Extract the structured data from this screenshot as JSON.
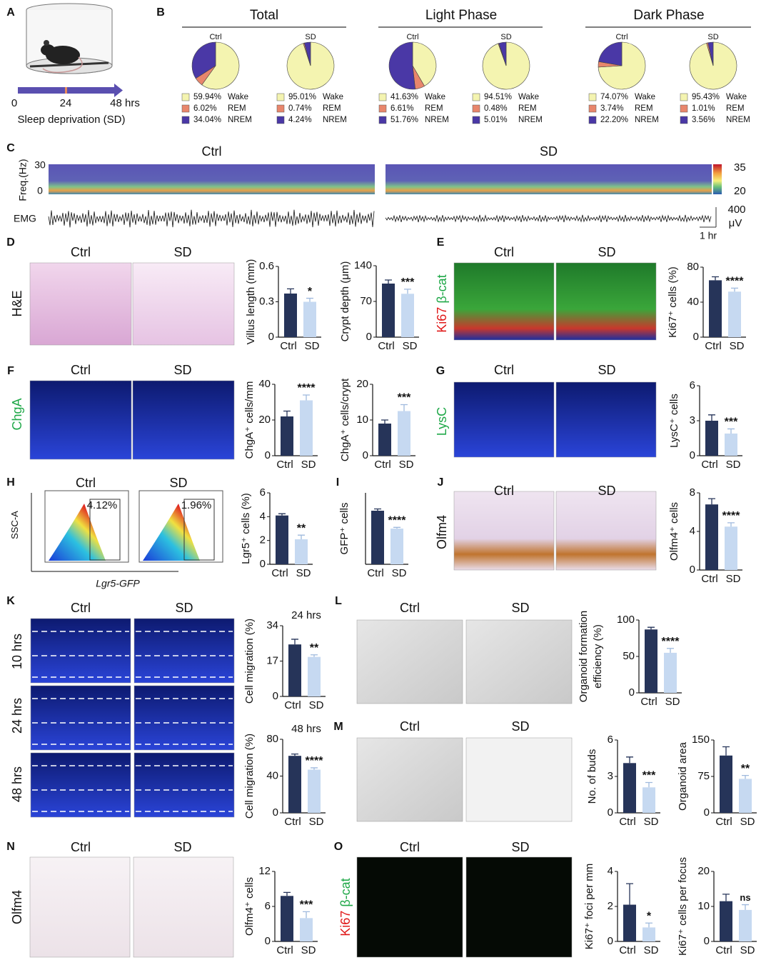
{
  "figure": {
    "panel_letters": [
      "A",
      "B",
      "C",
      "D",
      "E",
      "F",
      "G",
      "H",
      "I",
      "J",
      "K",
      "L",
      "M",
      "N",
      "O"
    ],
    "pie_groups": [
      "Total",
      "Light Phase",
      "Dark Phase"
    ],
    "timeline": {
      "ticks": [
        "0",
        "24",
        "48 hrs"
      ],
      "label": "Sleep deprivation (SD)"
    },
    "spectrogram": {
      "titles": [
        "Ctrl",
        "SD"
      ],
      "ylabel": "Freq.(Hz)",
      "yticks": [
        30,
        0
      ],
      "colorbar_ticks": [
        35,
        20
      ],
      "emg_label": "EMG",
      "emg_scale": [
        "400",
        "μV"
      ],
      "time_scale": "1 hr"
    },
    "image_titles": [
      "Ctrl",
      "SD",
      "Ctrl",
      "SD",
      "Ctrl",
      "SD",
      "Ctrl",
      "SD",
      "Ctrl",
      "SD",
      "Ctrl",
      "SD",
      "Ctrl",
      "SD",
      "Ctrl",
      "SD",
      "Ctrl",
      "SD",
      "Ctrl",
      "SD",
      "Ctrl",
      "SD"
    ],
    "side_labels": [
      [
        "H&E"
      ],
      [
        "Ki67",
        "β-cat"
      ],
      [
        "ChgA"
      ],
      [
        "LysC"
      ],
      [
        "SSC-A"
      ],
      [
        "Olfm4"
      ],
      [
        "10 hrs"
      ],
      [
        "24 hrs"
      ],
      [
        "48 hrs"
      ],
      [
        "Olfm4"
      ],
      [
        "Ki67",
        "β-cat"
      ]
    ],
    "flow": {
      "gates": [
        "4.12%",
        "1.96%"
      ],
      "xlabel": "Lgr5-GFP"
    }
  },
  "chart_data": [
    {
      "type": "pie",
      "title": "Ctrl",
      "categories": [
        "Wake",
        "REM",
        "NREM"
      ],
      "values": [
        59.94,
        6.02,
        34.04
      ],
      "value_labels": [
        "59.94%",
        "6.02%",
        "34.04%"
      ],
      "colors": [
        "#f4f4b0",
        "#e8866c",
        "#4a38a6"
      ]
    },
    {
      "type": "pie",
      "title": "SD",
      "categories": [
        "Wake",
        "REM",
        "NREM"
      ],
      "values": [
        95.01,
        0.74,
        4.24
      ],
      "value_labels": [
        "95.01%",
        "0.74%",
        "4.24%"
      ],
      "colors": [
        "#f4f4b0",
        "#e8866c",
        "#4a38a6"
      ]
    },
    {
      "type": "pie",
      "title": "Ctrl",
      "categories": [
        "Wake",
        "REM",
        "NREM"
      ],
      "values": [
        41.63,
        6.61,
        51.76
      ],
      "value_labels": [
        "41.63%",
        "6.61%",
        "51.76%"
      ],
      "colors": [
        "#f4f4b0",
        "#e8866c",
        "#4a38a6"
      ]
    },
    {
      "type": "pie",
      "title": "SD",
      "categories": [
        "Wake",
        "REM",
        "NREM"
      ],
      "values": [
        94.51,
        0.48,
        5.01
      ],
      "value_labels": [
        "94.51%",
        "0.48%",
        "5.01%"
      ],
      "colors": [
        "#f4f4b0",
        "#e8866c",
        "#4a38a6"
      ]
    },
    {
      "type": "pie",
      "title": "Ctrl",
      "categories": [
        "Wake",
        "REM",
        "NREM"
      ],
      "values": [
        74.07,
        3.74,
        22.2
      ],
      "value_labels": [
        "74.07%",
        "3.74%",
        "22.20%"
      ],
      "colors": [
        "#f4f4b0",
        "#e8866c",
        "#4a38a6"
      ]
    },
    {
      "type": "pie",
      "title": "SD",
      "categories": [
        "Wake",
        "REM",
        "NREM"
      ],
      "values": [
        95.43,
        1.01,
        3.56
      ],
      "value_labels": [
        "95.43%",
        "1.01%",
        "3.56%"
      ],
      "colors": [
        "#f4f4b0",
        "#e8866c",
        "#4a38a6"
      ]
    },
    {
      "type": "bar",
      "ylabel": "Villus length (mm)",
      "categories": [
        "Ctrl",
        "SD"
      ],
      "values": [
        0.37,
        0.3
      ],
      "errors": [
        0.04,
        0.03
      ],
      "colors": [
        "#263459",
        "#c6d9f1"
      ],
      "ylim": [
        0,
        0.6
      ],
      "yticks": [
        0,
        0.3,
        0.6
      ],
      "annotations": [
        "*"
      ]
    },
    {
      "type": "bar",
      "ylabel": "Crypt depth (μm)",
      "categories": [
        "Ctrl",
        "SD"
      ],
      "values": [
        105,
        85
      ],
      "errors": [
        7,
        9
      ],
      "colors": [
        "#263459",
        "#c6d9f1"
      ],
      "ylim": [
        0,
        140
      ],
      "yticks": [
        0,
        70,
        140
      ],
      "annotations": [
        "***"
      ]
    },
    {
      "type": "bar",
      "ylabel": "Ki67⁺ cells (%)",
      "categories": [
        "Ctrl",
        "SD"
      ],
      "values": [
        65,
        52
      ],
      "errors": [
        4,
        4
      ],
      "colors": [
        "#263459",
        "#c6d9f1"
      ],
      "ylim": [
        0,
        80
      ],
      "yticks": [
        0,
        40,
        80
      ],
      "annotations": [
        "****"
      ]
    },
    {
      "type": "bar",
      "ylabel": "ChgA⁺ cells/mm",
      "categories": [
        "Ctrl",
        "SD"
      ],
      "values": [
        22,
        31
      ],
      "errors": [
        3,
        3
      ],
      "colors": [
        "#263459",
        "#c6d9f1"
      ],
      "ylim": [
        0,
        40
      ],
      "yticks": [
        0,
        20,
        40
      ],
      "annotations": [
        "****"
      ]
    },
    {
      "type": "bar",
      "ylabel": "ChgA⁺ cells/crypt",
      "categories": [
        "Ctrl",
        "SD"
      ],
      "values": [
        9,
        12.5
      ],
      "errors": [
        1,
        1.8
      ],
      "colors": [
        "#263459",
        "#c6d9f1"
      ],
      "ylim": [
        0,
        20
      ],
      "yticks": [
        0,
        10,
        20
      ],
      "annotations": [
        "***"
      ]
    },
    {
      "type": "bar",
      "ylabel": "LysC⁺ cells",
      "categories": [
        "Ctrl",
        "SD"
      ],
      "values": [
        3,
        1.9
      ],
      "errors": [
        0.5,
        0.4
      ],
      "colors": [
        "#263459",
        "#c6d9f1"
      ],
      "ylim": [
        0,
        6
      ],
      "yticks": [
        0,
        3,
        6
      ],
      "annotations": [
        "***"
      ]
    },
    {
      "type": "bar",
      "ylabel": "Lgr5⁺ cells (%)",
      "categories": [
        "Ctrl",
        "SD"
      ],
      "values": [
        4.1,
        2.1
      ],
      "errors": [
        0.15,
        0.35
      ],
      "colors": [
        "#263459",
        "#c6d9f1"
      ],
      "ylim": [
        0,
        6
      ],
      "yticks": [
        0,
        2,
        4,
        6
      ],
      "annotations": [
        "**"
      ]
    },
    {
      "type": "bar",
      "ylabel": "GFP⁺ cells",
      "categories": [
        "Ctrl",
        "SD"
      ],
      "values": [
        4.5,
        3
      ],
      "errors": [
        0.15,
        0.1
      ],
      "colors": [
        "#263459",
        "#c6d9f1"
      ],
      "ylim": [
        0,
        6
      ],
      "annotations": [
        "****"
      ]
    },
    {
      "type": "bar",
      "ylabel": "Olfm4⁺ cells",
      "categories": [
        "Ctrl",
        "SD"
      ],
      "values": [
        6.8,
        4.5
      ],
      "errors": [
        0.6,
        0.4
      ],
      "colors": [
        "#263459",
        "#c6d9f1"
      ],
      "ylim": [
        0,
        8
      ],
      "yticks": [
        0,
        4,
        8
      ],
      "annotations": [
        "****"
      ]
    },
    {
      "type": "bar",
      "subtitle": "24 hrs",
      "ylabel": "Cell migration (%)",
      "categories": [
        "Ctrl",
        "SD"
      ],
      "values": [
        25,
        19
      ],
      "errors": [
        2.5,
        1
      ],
      "colors": [
        "#263459",
        "#c6d9f1"
      ],
      "ylim": [
        0,
        34
      ],
      "yticks": [
        0,
        17,
        34
      ],
      "annotations": [
        "**"
      ]
    },
    {
      "type": "bar",
      "subtitle": "48 hrs",
      "ylabel": "Cell migration (%)",
      "categories": [
        "Ctrl",
        "SD"
      ],
      "values": [
        62,
        47
      ],
      "errors": [
        2,
        2
      ],
      "colors": [
        "#263459",
        "#c6d9f1"
      ],
      "ylim": [
        0,
        80
      ],
      "yticks": [
        0,
        40,
        80
      ],
      "annotations": [
        "****"
      ]
    },
    {
      "type": "bar",
      "ylabel": [
        "Organoid formation",
        "efficiency (%)"
      ],
      "categories": [
        "Ctrl",
        "SD"
      ],
      "values": [
        87,
        55
      ],
      "errors": [
        3,
        6
      ],
      "colors": [
        "#263459",
        "#c6d9f1"
      ],
      "ylim": [
        0,
        100
      ],
      "yticks": [
        0,
        50,
        100
      ],
      "annotations": [
        "****"
      ]
    },
    {
      "type": "bar",
      "ylabel": "No. of buds",
      "categories": [
        "Ctrl",
        "SD"
      ],
      "values": [
        4.1,
        2.1
      ],
      "errors": [
        0.5,
        0.4
      ],
      "colors": [
        "#263459",
        "#c6d9f1"
      ],
      "ylim": [
        0,
        6
      ],
      "yticks": [
        0,
        3,
        6
      ],
      "annotations": [
        "***"
      ]
    },
    {
      "type": "bar",
      "ylabel": "Organoid area",
      "categories": [
        "Ctrl",
        "SD"
      ],
      "values": [
        118,
        70
      ],
      "errors": [
        18,
        7
      ],
      "colors": [
        "#263459",
        "#c6d9f1"
      ],
      "ylim": [
        0,
        150
      ],
      "yticks": [
        0,
        75,
        150
      ],
      "annotations": [
        "**"
      ]
    },
    {
      "type": "bar",
      "ylabel": "Olfm4⁺ cells",
      "categories": [
        "Ctrl",
        "SD"
      ],
      "values": [
        7.8,
        4
      ],
      "errors": [
        0.6,
        1.1
      ],
      "colors": [
        "#263459",
        "#c6d9f1"
      ],
      "ylim": [
        0,
        12
      ],
      "yticks": [
        0,
        6,
        12
      ],
      "annotations": [
        "***"
      ]
    },
    {
      "type": "bar",
      "ylabel": "Ki67⁺ foci per mm",
      "categories": [
        "Ctrl",
        "SD"
      ],
      "values": [
        2.1,
        0.8
      ],
      "errors": [
        1.2,
        0.25
      ],
      "colors": [
        "#263459",
        "#c6d9f1"
      ],
      "ylim": [
        0,
        4
      ],
      "yticks": [
        0,
        2,
        4
      ],
      "annotations": [
        "*"
      ]
    },
    {
      "type": "bar",
      "ylabel": "Ki67⁺ cells per focus",
      "categories": [
        "Ctrl",
        "SD"
      ],
      "values": [
        11.5,
        9
      ],
      "errors": [
        2,
        1.5
      ],
      "colors": [
        "#263459",
        "#c6d9f1"
      ],
      "ylim": [
        0,
        20
      ],
      "yticks": [
        0,
        10,
        20
      ],
      "annotations": [
        "ns"
      ]
    }
  ]
}
